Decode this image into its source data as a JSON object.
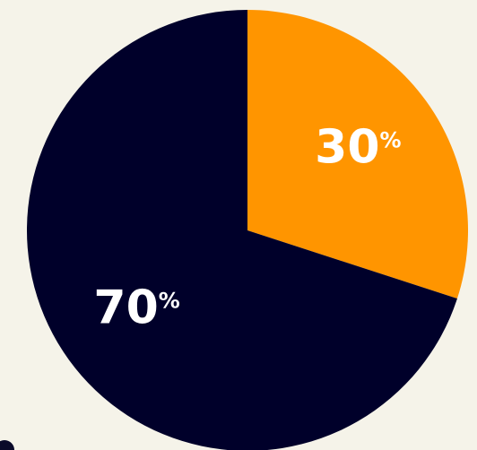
{
  "chart_data": {
    "type": "pie",
    "slices": [
      {
        "label": "30%",
        "value": 30,
        "color": "#ff9500"
      },
      {
        "label": "70%",
        "value": 70,
        "color": "#00002a"
      }
    ],
    "title": "",
    "legend": "none"
  },
  "background_color": "#f5f3e9"
}
